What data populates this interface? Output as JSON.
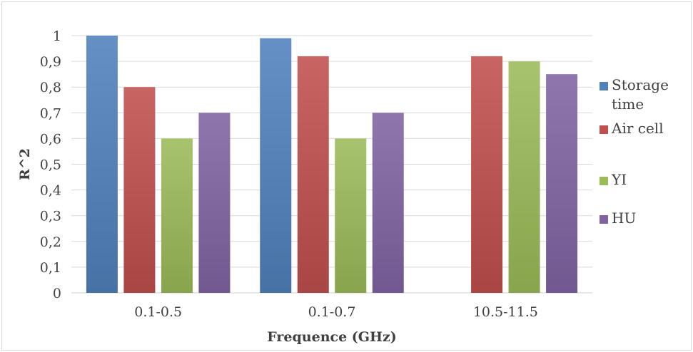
{
  "chart_data": {
    "type": "bar",
    "title": "",
    "xlabel": "Frequence (GHz)",
    "ylabel": "R^2",
    "ylim": [
      0,
      1
    ],
    "y_tick_labels": [
      "0",
      "0,1",
      "0,2",
      "0,3",
      "0,4",
      "0,5",
      "0,6",
      "0,7",
      "0,8",
      "0,9",
      "1"
    ],
    "grid": true,
    "legend_position": "right",
    "categories": [
      "0.1-0.5",
      "0.1-0.7",
      "10.5-11.5"
    ],
    "series": [
      {
        "name": "Storage time",
        "legend_lines": [
          "Storage",
          "time"
        ],
        "color": "#4f81bd",
        "values": [
          1.0,
          0.99,
          null
        ]
      },
      {
        "name": "Air cell",
        "legend_lines": [
          "Air cell"
        ],
        "color": "#c0504d",
        "values": [
          0.8,
          0.92,
          0.92
        ]
      },
      {
        "name": "YI",
        "legend_lines": [
          "YI"
        ],
        "color": "#9bbb59",
        "values": [
          0.6,
          0.6,
          0.9
        ]
      },
      {
        "name": "HU",
        "legend_lines": [
          "HU"
        ],
        "color": "#8064a2",
        "values": [
          0.7,
          0.7,
          0.85
        ]
      }
    ]
  }
}
